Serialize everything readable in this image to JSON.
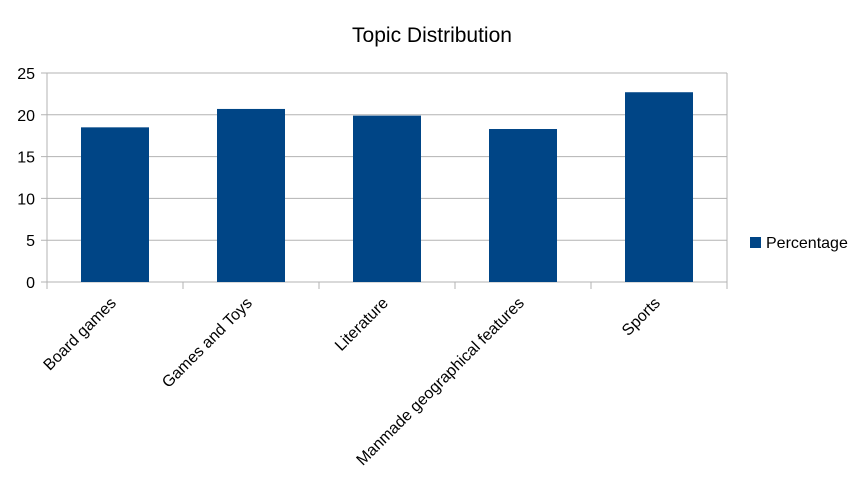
{
  "chart_data": {
    "type": "bar",
    "title": "Topic Distribution",
    "categories": [
      "Board games",
      "Games and Toys",
      "Literature",
      "Manmade geographical features",
      "Sports"
    ],
    "series": [
      {
        "name": "Percentage",
        "values": [
          18.5,
          20.7,
          19.9,
          18.3,
          22.7
        ]
      }
    ],
    "ylim": [
      0,
      25
    ],
    "yticks": [
      0,
      5,
      10,
      15,
      20,
      25
    ],
    "grid": true,
    "legend_position": "right",
    "colors": {
      "series": "#004586",
      "grid": "#b3b3b3"
    }
  }
}
